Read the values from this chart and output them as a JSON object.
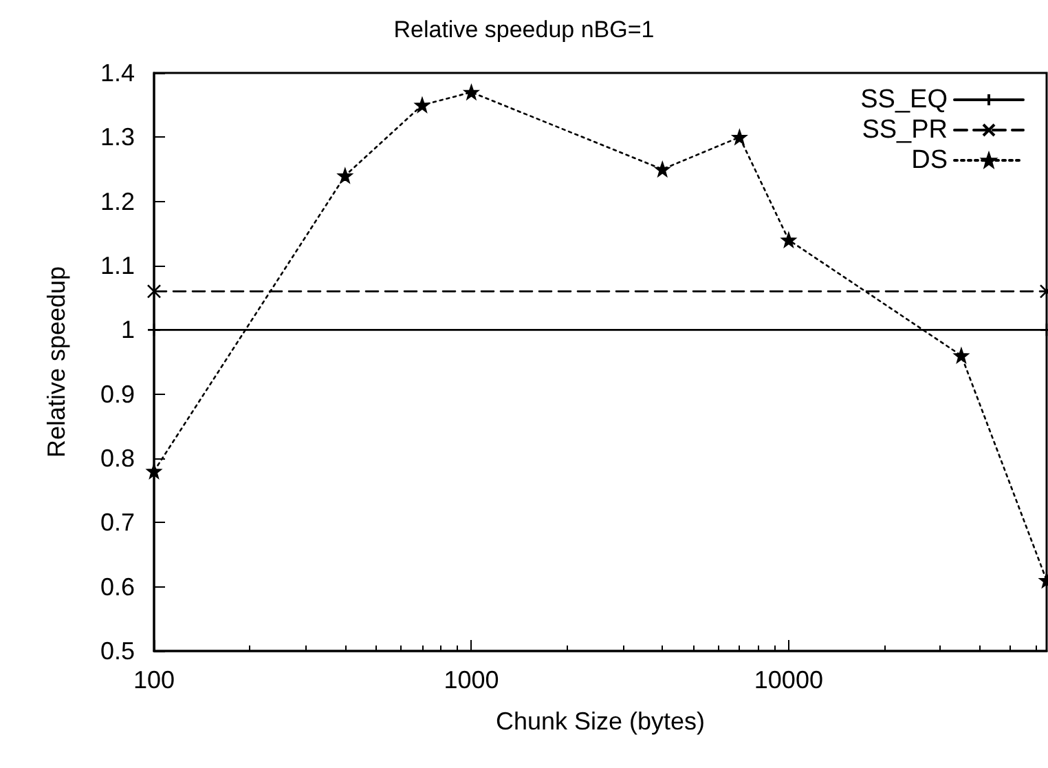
{
  "chart_data": {
    "type": "line",
    "title": "Relative speedup nBG=1",
    "xlabel": "Chunk Size (bytes)",
    "ylabel": "Relative speedup",
    "log": "x",
    "xlim": [
      100,
      65000
    ],
    "xticks": [
      100,
      1000,
      10000
    ],
    "ylim": [
      0.5,
      1.4
    ],
    "yticks": [
      0.5,
      0.6,
      0.7,
      0.8,
      0.9,
      1,
      1.1,
      1.2,
      1.3,
      1.4
    ],
    "grid": false,
    "legend": "top right",
    "series": [
      {
        "name": "SS_EQ",
        "color": "#000000",
        "marker": "cross",
        "line_style": "solid",
        "x": [
          100,
          65000
        ],
        "values": [
          1,
          1
        ]
      },
      {
        "name": "SS_PR",
        "color": "#000000",
        "marker": "x",
        "line_style": "dashed",
        "x": [
          100,
          65000
        ],
        "values": [
          1.06,
          1.06
        ]
      },
      {
        "name": "DS",
        "color": "#000000",
        "marker": "star",
        "line_style": "dotted",
        "x": [
          100,
          400,
          700,
          1000,
          4000,
          7000,
          10000,
          35000,
          65000
        ],
        "values": [
          0.78,
          1.24,
          1.35,
          1.37,
          1.25,
          1.3,
          1.14,
          0.96,
          0.61
        ]
      }
    ]
  }
}
